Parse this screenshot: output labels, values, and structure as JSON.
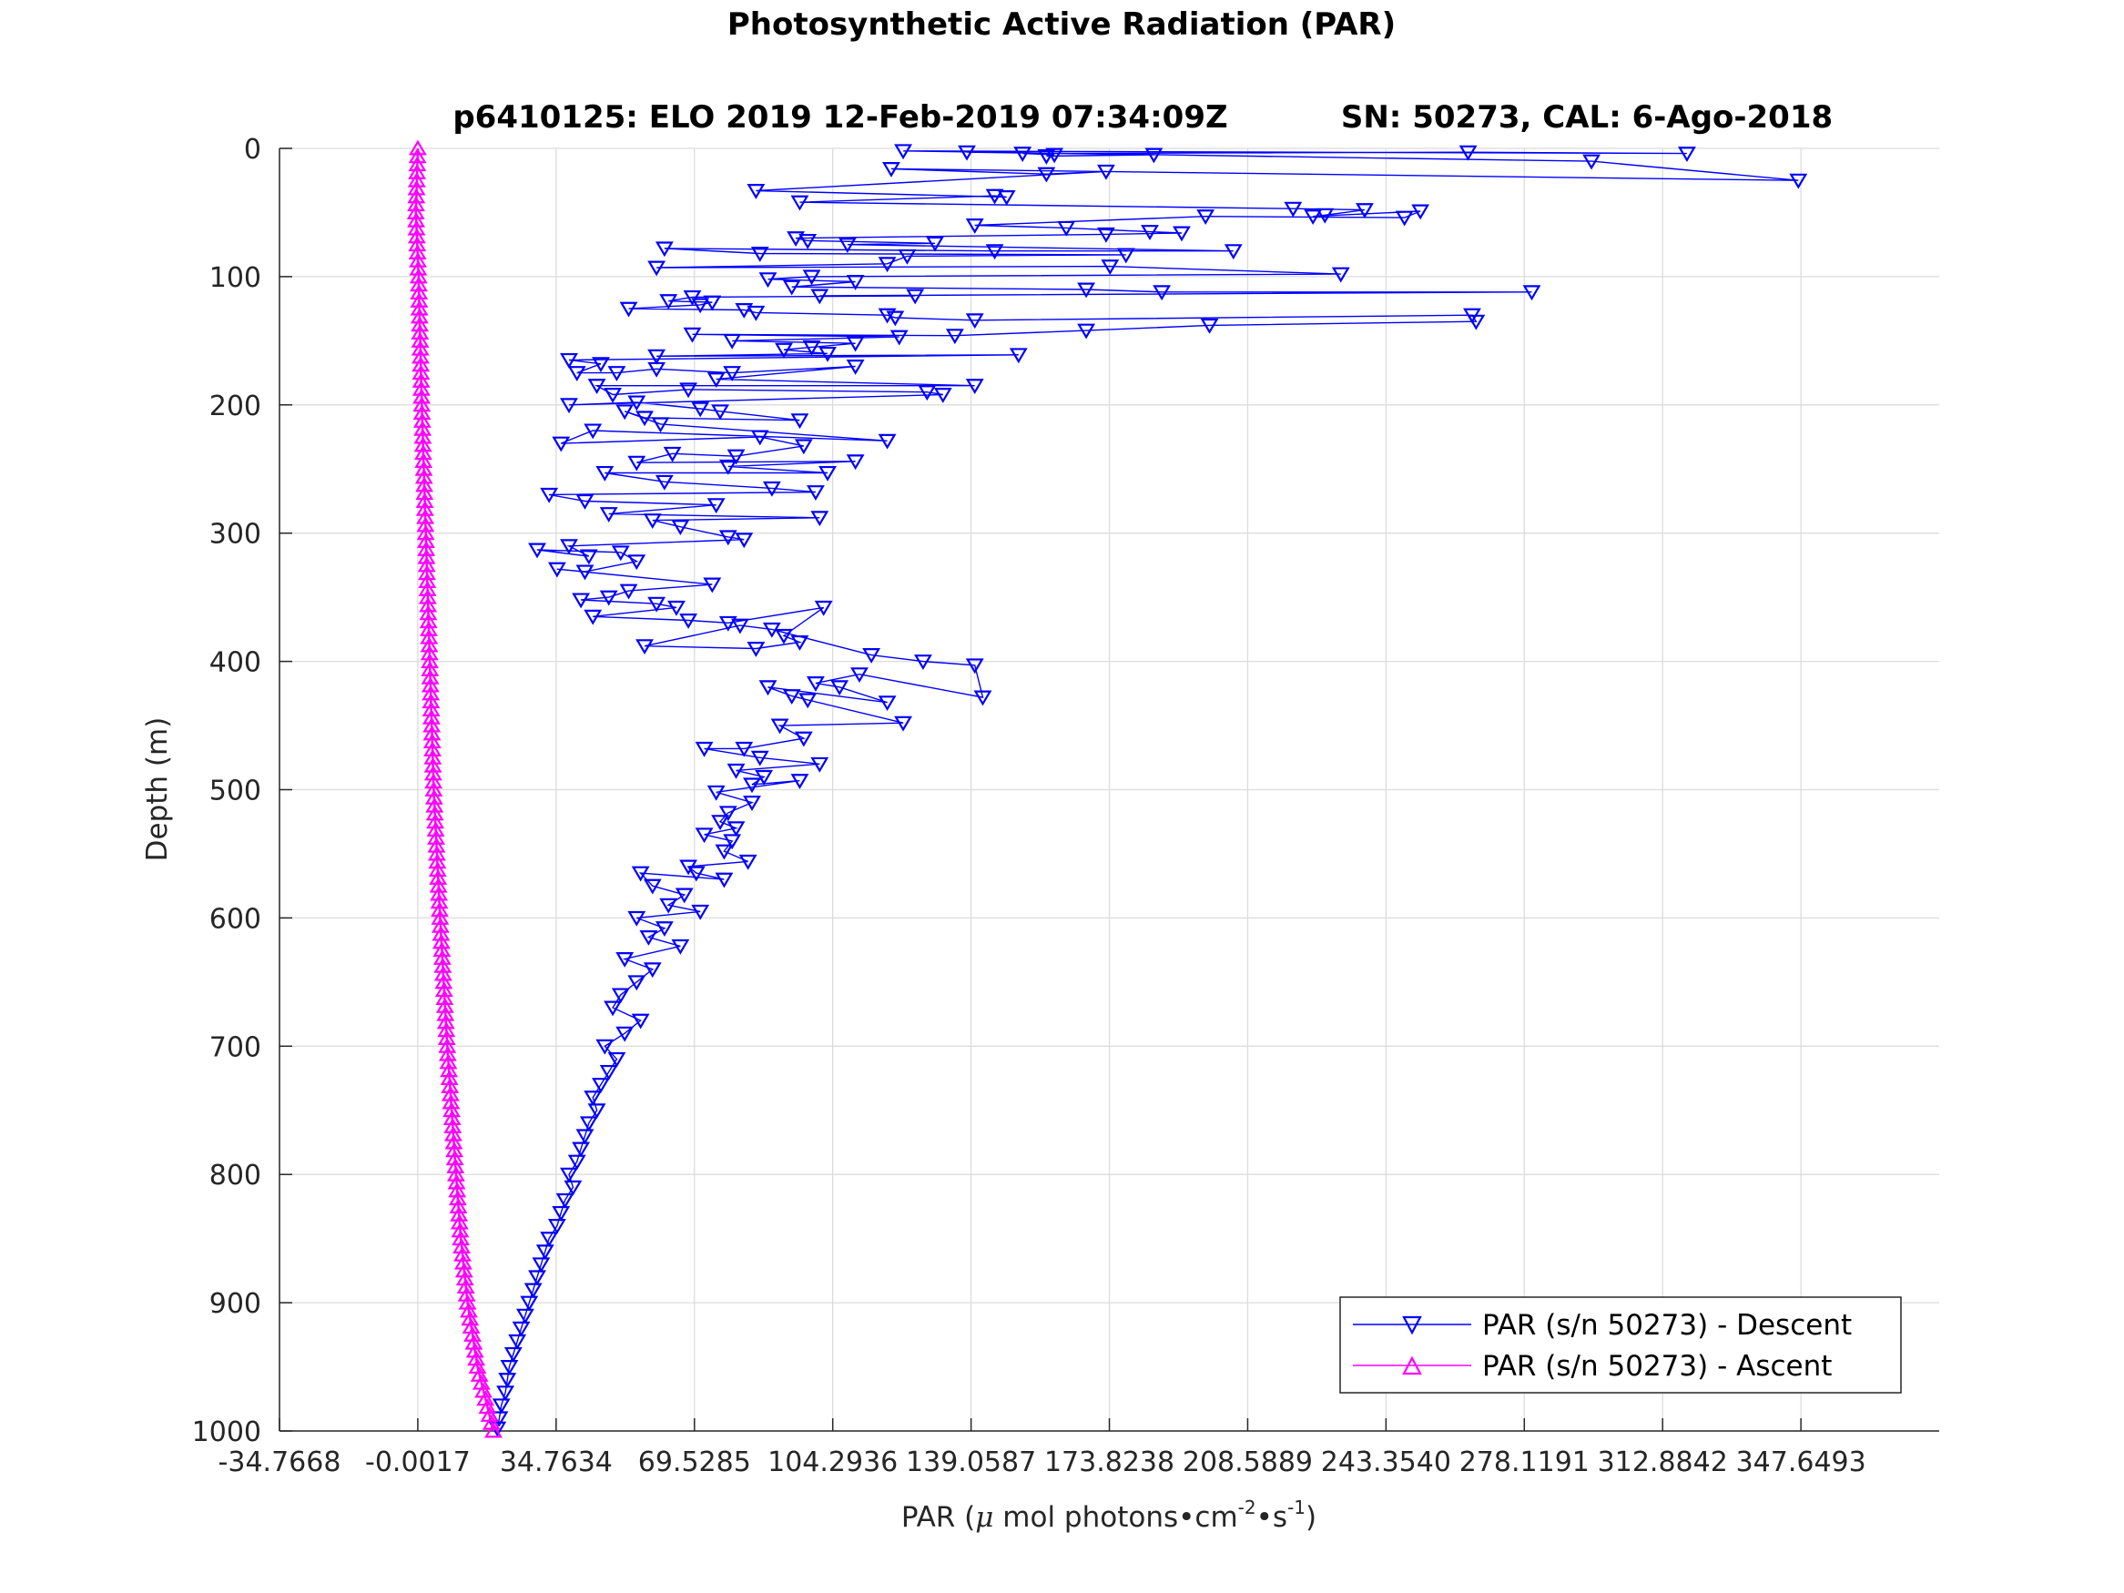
{
  "chart_data": {
    "type": "scatter",
    "title": "Photosynthetic Active Radiation (PAR)",
    "subtitle_left": "p6410125: ELO 2019 12-Feb-2019 07:34:09Z",
    "subtitle_right": "SN: 50273, CAL: 6-Ago-2018",
    "xlabel_pre": "PAR (",
    "xlabel_mu": "μ",
    "xlabel_mid": " mol photons",
    "xlabel_cm": "cm",
    "xlabel_exp1": "-2",
    "xlabel_s": "s",
    "xlabel_exp2": "-1",
    "xlabel_post": ")",
    "ylabel": "Depth (m)",
    "xlim": [
      -34.7668,
      382.4
    ],
    "ylim": [
      0,
      1000
    ],
    "y_reversed": true,
    "grid": true,
    "xticks": [
      -34.7668,
      -0.0017,
      34.7634,
      69.5285,
      104.2936,
      139.0587,
      173.8238,
      208.5889,
      243.354,
      278.1191,
      312.8842,
      347.6493
    ],
    "xtick_labels": [
      "-34.7668",
      "-0.0017",
      "34.7634",
      "69.5285",
      "104.2936",
      "139.0587",
      "173.8238",
      "208.5889",
      "243.3540",
      "278.1191",
      "312.8842",
      "347.6493"
    ],
    "yticks": [
      0,
      100,
      200,
      300,
      400,
      500,
      600,
      700,
      800,
      900,
      1000
    ],
    "ytick_labels": [
      "0",
      "100",
      "200",
      "300",
      "400",
      "500",
      "600",
      "700",
      "800",
      "900",
      "1000"
    ],
    "legend_position": "bottom-right",
    "series": [
      {
        "name": "PAR (s/n 50273) - Descent",
        "color": "#0000ff",
        "marker": "triangle-down",
        "points": [
          [
            138,
            3
          ],
          [
            185,
            5
          ],
          [
            158,
            6
          ],
          [
            160,
            5
          ],
          [
            152,
            4
          ],
          [
            264,
            3
          ],
          [
            319,
            4
          ],
          [
            122,
            2
          ],
          [
            295,
            10
          ],
          [
            347,
            25
          ],
          [
            119,
            16
          ],
          [
            158,
            20
          ],
          [
            173,
            18
          ],
          [
            85,
            33
          ],
          [
            148,
            38
          ],
          [
            145,
            37
          ],
          [
            96,
            42
          ],
          [
            220,
            47
          ],
          [
            238,
            48
          ],
          [
            228,
            52
          ],
          [
            225,
            53
          ],
          [
            252,
            49
          ],
          [
            248,
            54
          ],
          [
            198,
            53
          ],
          [
            140,
            60
          ],
          [
            163,
            62
          ],
          [
            184,
            65
          ],
          [
            192,
            66
          ],
          [
            173,
            67
          ],
          [
            95,
            70
          ],
          [
            98,
            72
          ],
          [
            130,
            74
          ],
          [
            108,
            75
          ],
          [
            205,
            80
          ],
          [
            145,
            80
          ],
          [
            62,
            78
          ],
          [
            86,
            82
          ],
          [
            178,
            83
          ],
          [
            123,
            84
          ],
          [
            118,
            90
          ],
          [
            60,
            93
          ],
          [
            174,
            92
          ],
          [
            232,
            98
          ],
          [
            99,
            100
          ],
          [
            88,
            102
          ],
          [
            110,
            104
          ],
          [
            94,
            108
          ],
          [
            168,
            110
          ],
          [
            187,
            112
          ],
          [
            280,
            112
          ],
          [
            101,
            115
          ],
          [
            125,
            115
          ],
          [
            69,
            116
          ],
          [
            63,
            119
          ],
          [
            74,
            120
          ],
          [
            71,
            122
          ],
          [
            53,
            125
          ],
          [
            82,
            126
          ],
          [
            85,
            128
          ],
          [
            118,
            130
          ],
          [
            120,
            132
          ],
          [
            140,
            134
          ],
          [
            265,
            130
          ],
          [
            266,
            135
          ],
          [
            199,
            138
          ],
          [
            168,
            142
          ],
          [
            135,
            146
          ],
          [
            69,
            145
          ],
          [
            121,
            147
          ],
          [
            79,
            150
          ],
          [
            110,
            152
          ],
          [
            99,
            155
          ],
          [
            92,
            157
          ],
          [
            103,
            160
          ],
          [
            60,
            162
          ],
          [
            151,
            161
          ],
          [
            38,
            165
          ],
          [
            46,
            168
          ],
          [
            40,
            175
          ],
          [
            50,
            175
          ],
          [
            60,
            172
          ],
          [
            79,
            175
          ],
          [
            110,
            170
          ],
          [
            75,
            180
          ],
          [
            140,
            185
          ],
          [
            45,
            185
          ],
          [
            49,
            192
          ],
          [
            68,
            188
          ],
          [
            128,
            190
          ],
          [
            132,
            192
          ],
          [
            38,
            200
          ],
          [
            55,
            198
          ],
          [
            71,
            203
          ],
          [
            76,
            205
          ],
          [
            96,
            212
          ],
          [
            57,
            210
          ],
          [
            52,
            205
          ],
          [
            61,
            215
          ],
          [
            118,
            228
          ],
          [
            44,
            220
          ],
          [
            36,
            230
          ],
          [
            86,
            225
          ],
          [
            97,
            232
          ],
          [
            80,
            240
          ],
          [
            64,
            238
          ],
          [
            55,
            245
          ],
          [
            110,
            244
          ],
          [
            78,
            248
          ],
          [
            103,
            253
          ],
          [
            47,
            253
          ],
          [
            62,
            260
          ],
          [
            89,
            265
          ],
          [
            100,
            268
          ],
          [
            33,
            270
          ],
          [
            42,
            275
          ],
          [
            75,
            278
          ],
          [
            48,
            285
          ],
          [
            101,
            288
          ],
          [
            59,
            290
          ],
          [
            66,
            295
          ],
          [
            78,
            303
          ],
          [
            82,
            305
          ],
          [
            38,
            310
          ],
          [
            43,
            318
          ],
          [
            30,
            313
          ],
          [
            51,
            315
          ],
          [
            55,
            322
          ],
          [
            42,
            330
          ],
          [
            35,
            328
          ],
          [
            74,
            340
          ],
          [
            53,
            345
          ],
          [
            48,
            350
          ],
          [
            41,
            352
          ],
          [
            60,
            355
          ],
          [
            65,
            358
          ],
          [
            44,
            365
          ],
          [
            68,
            368
          ],
          [
            78,
            370
          ],
          [
            102,
            358
          ],
          [
            92,
            380
          ],
          [
            96,
            385
          ],
          [
            85,
            390
          ],
          [
            57,
            388
          ],
          [
            81,
            372
          ],
          [
            89,
            375
          ],
          [
            114,
            395
          ],
          [
            127,
            400
          ],
          [
            140,
            403
          ],
          [
            142,
            428
          ],
          [
            111,
            410
          ],
          [
            100,
            417
          ],
          [
            106,
            420
          ],
          [
            118,
            432
          ],
          [
            88,
            420
          ],
          [
            94,
            427
          ],
          [
            98,
            430
          ],
          [
            122,
            448
          ],
          [
            91,
            450
          ],
          [
            97,
            460
          ],
          [
            82,
            468
          ],
          [
            72,
            468
          ],
          [
            86,
            475
          ],
          [
            101,
            480
          ],
          [
            80,
            485
          ],
          [
            87,
            490
          ],
          [
            84,
            496
          ],
          [
            96,
            493
          ],
          [
            75,
            502
          ],
          [
            84,
            510
          ],
          [
            78,
            518
          ],
          [
            76,
            525
          ],
          [
            80,
            530
          ],
          [
            72,
            535
          ],
          [
            79,
            540
          ],
          [
            77,
            548
          ],
          [
            83,
            556
          ],
          [
            68,
            560
          ],
          [
            70,
            565
          ],
          [
            77,
            570
          ],
          [
            56,
            565
          ],
          [
            59,
            575
          ],
          [
            67,
            582
          ],
          [
            63,
            590
          ],
          [
            71,
            595
          ],
          [
            55,
            600
          ],
          [
            62,
            608
          ],
          [
            58,
            615
          ],
          [
            66,
            622
          ],
          [
            52,
            632
          ],
          [
            59,
            640
          ],
          [
            55,
            650
          ],
          [
            51,
            660
          ],
          [
            49,
            670
          ],
          [
            56,
            680
          ],
          [
            52,
            690
          ],
          [
            47,
            700
          ],
          [
            50,
            710
          ],
          [
            48,
            720
          ],
          [
            46,
            730
          ],
          [
            44,
            740
          ],
          [
            45,
            750
          ],
          [
            43,
            760
          ],
          [
            42,
            770
          ],
          [
            41,
            780
          ],
          [
            40,
            790
          ],
          [
            38,
            800
          ],
          [
            39,
            810
          ],
          [
            37,
            820
          ],
          [
            36,
            830
          ],
          [
            35,
            840
          ],
          [
            33,
            850
          ],
          [
            32,
            860
          ],
          [
            31,
            870
          ],
          [
            30,
            880
          ],
          [
            29,
            890
          ],
          [
            28,
            900
          ],
          [
            27,
            910
          ],
          [
            26,
            920
          ],
          [
            25,
            930
          ],
          [
            24,
            940
          ],
          [
            23,
            950
          ],
          [
            22.5,
            960
          ],
          [
            22,
            970
          ],
          [
            21,
            980
          ],
          [
            20.5,
            990
          ],
          [
            20,
            998
          ]
        ]
      },
      {
        "name": "PAR (s/n 50273) - Ascent",
        "color": "#ff00ff",
        "marker": "triangle-up",
        "points": [
          [
            0,
            0
          ],
          [
            -0.5,
            50
          ],
          [
            0.2,
            100
          ],
          [
            0.6,
            150
          ],
          [
            1,
            200
          ],
          [
            1.5,
            250
          ],
          [
            2,
            300
          ],
          [
            2.5,
            350
          ],
          [
            3,
            400
          ],
          [
            3.5,
            450
          ],
          [
            4,
            500
          ],
          [
            4.8,
            550
          ],
          [
            5.6,
            600
          ],
          [
            6.5,
            650
          ],
          [
            7.4,
            700
          ],
          [
            8.5,
            750
          ],
          [
            9.6,
            800
          ],
          [
            10.8,
            850
          ],
          [
            12.5,
            900
          ],
          [
            15,
            950
          ],
          [
            19,
            1000
          ]
        ]
      }
    ]
  }
}
